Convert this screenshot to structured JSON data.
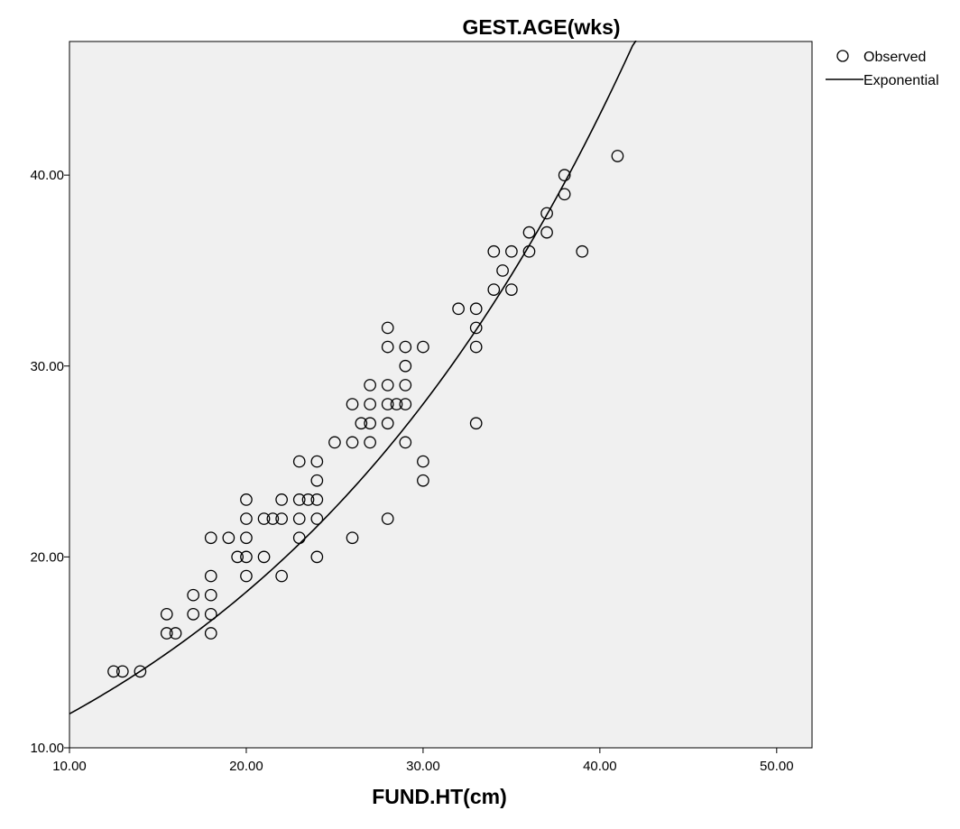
{
  "chart_data": {
    "type": "scatter",
    "title": "GEST.AGE(wks)",
    "xlabel": "FUND.HT(cm)",
    "ylabel": "",
    "xlim": [
      10,
      52
    ],
    "ylim": [
      10,
      47
    ],
    "x_ticks": [
      "10.00",
      "20.00",
      "30.00",
      "40.00",
      "50.00"
    ],
    "y_ticks": [
      "10.00",
      "20.00",
      "30.00",
      "40.00"
    ],
    "x_tick_values": [
      10,
      20,
      30,
      40,
      50
    ],
    "y_tick_values": [
      10,
      20,
      30,
      40
    ],
    "grid": false,
    "plot_background": "#f0f0f0",
    "legend": {
      "placement": "top-right outside",
      "items": [
        {
          "name": "Observed",
          "marker": "circle"
        },
        {
          "name": "Exponential",
          "marker": "line"
        }
      ]
    },
    "series": [
      {
        "name": "Observed",
        "points": [
          [
            12.5,
            14
          ],
          [
            13,
            14
          ],
          [
            14,
            14
          ],
          [
            15.5,
            17
          ],
          [
            15.5,
            16
          ],
          [
            16,
            16
          ],
          [
            17,
            18
          ],
          [
            17,
            17
          ],
          [
            18,
            21
          ],
          [
            18,
            19
          ],
          [
            18,
            18
          ],
          [
            18,
            17
          ],
          [
            18,
            16
          ],
          [
            19,
            21
          ],
          [
            19.5,
            20
          ],
          [
            20,
            23
          ],
          [
            20,
            22
          ],
          [
            20,
            21
          ],
          [
            20,
            20
          ],
          [
            20,
            19
          ],
          [
            21,
            22
          ],
          [
            21,
            20
          ],
          [
            21.5,
            22
          ],
          [
            22,
            23
          ],
          [
            22,
            22
          ],
          [
            22,
            19
          ],
          [
            23,
            25
          ],
          [
            23,
            23
          ],
          [
            23,
            22
          ],
          [
            23,
            21
          ],
          [
            23.5,
            23
          ],
          [
            24,
            25
          ],
          [
            24,
            24
          ],
          [
            24,
            23
          ],
          [
            24,
            22
          ],
          [
            24,
            20
          ],
          [
            25,
            26
          ],
          [
            26,
            28
          ],
          [
            26,
            26
          ],
          [
            26,
            21
          ],
          [
            26.5,
            27
          ],
          [
            27,
            29
          ],
          [
            27,
            28
          ],
          [
            27,
            27
          ],
          [
            27,
            26
          ],
          [
            28,
            32
          ],
          [
            28,
            31
          ],
          [
            28,
            29
          ],
          [
            28,
            28
          ],
          [
            28,
            27
          ],
          [
            28,
            22
          ],
          [
            28.5,
            28
          ],
          [
            29,
            31
          ],
          [
            29,
            30
          ],
          [
            29,
            29
          ],
          [
            29,
            28
          ],
          [
            29,
            26
          ],
          [
            30,
            31
          ],
          [
            30,
            25
          ],
          [
            30,
            24
          ],
          [
            32,
            33
          ],
          [
            33,
            33
          ],
          [
            33,
            32
          ],
          [
            33,
            31
          ],
          [
            33,
            27
          ],
          [
            34,
            36
          ],
          [
            34,
            34
          ],
          [
            34.5,
            35
          ],
          [
            35,
            36
          ],
          [
            35,
            34
          ],
          [
            36,
            37
          ],
          [
            36,
            36
          ],
          [
            37,
            38
          ],
          [
            37,
            37
          ],
          [
            38,
            40
          ],
          [
            38,
            39
          ],
          [
            39,
            36
          ],
          [
            41,
            41
          ]
        ]
      },
      {
        "name": "Exponential",
        "equation": "y = 7.64 * exp(0.0433 * x)",
        "a": 7.64,
        "b": 0.0433,
        "x_range": [
          10,
          42.5
        ]
      }
    ]
  }
}
